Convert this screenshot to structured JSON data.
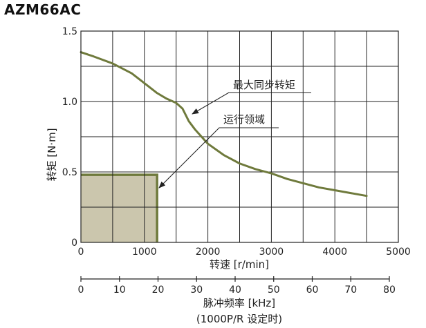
{
  "chart_data": {
    "type": "line",
    "title": "AZM66AC",
    "xlabel": "转速 [r/min]",
    "ylabel": "转矩 [N·m]",
    "xlim": [
      0,
      5000
    ],
    "ylim": [
      0,
      1.5
    ],
    "x_ticks": [
      "0",
      "1000",
      "2000",
      "3000",
      "4000",
      "5000"
    ],
    "y_ticks": [
      "0",
      "0.5",
      "1.0",
      "1.5"
    ],
    "grid": true,
    "secondary_x": {
      "label_line1": "脉冲频率 [kHz]",
      "label_line2": "(1000P/R 设定时)",
      "ticks": [
        "0",
        "10",
        "20",
        "30",
        "40",
        "50",
        "60",
        "70",
        "80"
      ]
    },
    "series": [
      {
        "name": "最大同步转矩",
        "color": "#6f7a3c",
        "x": [
          0,
          200,
          500,
          800,
          1000,
          1200,
          1350,
          1500,
          1600,
          1700,
          1800,
          2000,
          2250,
          2500,
          2750,
          3000,
          3250,
          3500,
          3750,
          4000,
          4250,
          4500
        ],
        "y": [
          1.35,
          1.32,
          1.27,
          1.2,
          1.13,
          1.06,
          1.02,
          0.99,
          0.95,
          0.86,
          0.8,
          0.7,
          0.62,
          0.56,
          0.52,
          0.49,
          0.45,
          0.42,
          0.39,
          0.37,
          0.35,
          0.33
        ]
      }
    ],
    "regions": [
      {
        "name": "运行领域",
        "x": [
          0,
          1200
        ],
        "y": [
          0,
          0.48
        ],
        "fill": "#cbc6ad",
        "edge": "#6f7a3c"
      }
    ],
    "annotations": [
      {
        "text": "最大同步转矩",
        "target_series": "最大同步转矩"
      },
      {
        "text": "运行领域",
        "target_region": "运行领域"
      }
    ]
  }
}
